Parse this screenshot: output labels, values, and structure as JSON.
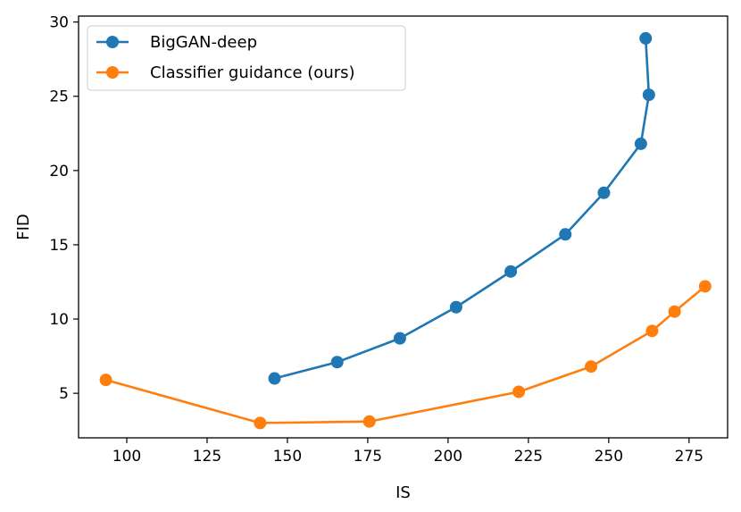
{
  "chart_data": {
    "type": "line",
    "xlabel": "IS",
    "ylabel": "FID",
    "xlim": [
      85,
      287
    ],
    "ylim": [
      2.0,
      30.4
    ],
    "xticks": [
      100,
      125,
      150,
      175,
      200,
      225,
      250,
      275
    ],
    "yticks": [
      5,
      10,
      15,
      20,
      25,
      30
    ],
    "legend_position": "top-left",
    "grid": false,
    "series": [
      {
        "name": "BigGAN-deep",
        "color": "#1f77b4",
        "points": [
          {
            "x": 146.0,
            "y": 6.0
          },
          {
            "x": 165.5,
            "y": 7.1
          },
          {
            "x": 185.0,
            "y": 8.7
          },
          {
            "x": 202.5,
            "y": 10.8
          },
          {
            "x": 219.5,
            "y": 13.2
          },
          {
            "x": 236.5,
            "y": 15.7
          },
          {
            "x": 248.5,
            "y": 18.5
          },
          {
            "x": 260.0,
            "y": 21.8
          },
          {
            "x": 262.5,
            "y": 25.1
          },
          {
            "x": 261.5,
            "y": 28.9
          }
        ]
      },
      {
        "name": "Classifier guidance (ours)",
        "color": "#ff7f0e",
        "points": [
          {
            "x": 93.5,
            "y": 5.9
          },
          {
            "x": 141.5,
            "y": 3.0
          },
          {
            "x": 175.5,
            "y": 3.1
          },
          {
            "x": 222.0,
            "y": 5.1
          },
          {
            "x": 244.5,
            "y": 6.8
          },
          {
            "x": 263.5,
            "y": 9.2
          },
          {
            "x": 270.5,
            "y": 10.5
          },
          {
            "x": 280.0,
            "y": 12.2
          }
        ]
      }
    ]
  }
}
